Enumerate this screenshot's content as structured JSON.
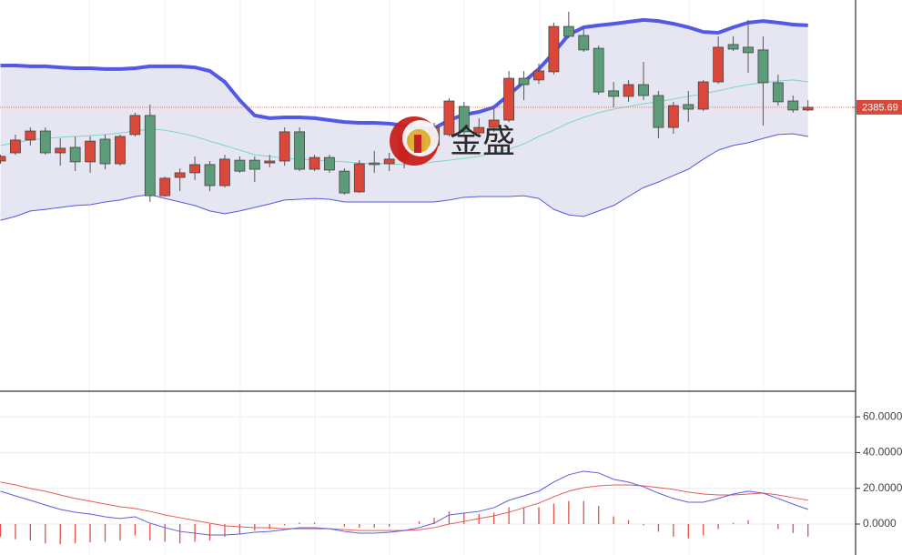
{
  "chart_data": [
    {
      "type": "candlestick",
      "categories": [
        null,
        null,
        null,
        null,
        null,
        null,
        null,
        null,
        null,
        null,
        null,
        null,
        null,
        null,
        null,
        null,
        null,
        null,
        null,
        null,
        null,
        null,
        null,
        null,
        null,
        null,
        null,
        null,
        null,
        null,
        null,
        null,
        null,
        null,
        null,
        null,
        null,
        null,
        null,
        null,
        null,
        null,
        null,
        null,
        null,
        null,
        null,
        null,
        null,
        null,
        null,
        null,
        null,
        null,
        null
      ],
      "open": [
        2366.0,
        2369.0,
        2373.7,
        2377.0,
        2369.0,
        2371.0,
        2365.7,
        2374.0,
        2365.0,
        2375.7,
        2382.7,
        2353.3,
        2360.0,
        2361.7,
        2364.7,
        2357.0,
        2366.3,
        2366.3,
        2365.3,
        2366.0,
        2376.7,
        2363.0,
        2367.3,
        2362.3,
        2354.7,
        2365.3,
        2365.0,
        2366.3,
        2375.0,
        2371.7,
        2375.7,
        2386.0,
        2376.3,
        2378.3,
        2381.0,
        2396.3,
        2395.7,
        2398.7,
        2415.3,
        2412.0,
        2407.3,
        2391.7,
        2389.7,
        2394.0,
        2390.0,
        2378.3,
        2386.7,
        2385.0,
        2395.0,
        2408.7,
        2407.7,
        2406.7,
        2394.7,
        2388.0,
        2384.7
      ],
      "close": [
        2367.7,
        2373.7,
        2377.0,
        2369.0,
        2370.7,
        2365.7,
        2373.3,
        2365.0,
        2375.0,
        2382.7,
        2353.3,
        2359.7,
        2361.7,
        2364.7,
        2357.0,
        2366.7,
        2362.3,
        2363.0,
        2366.0,
        2376.7,
        2363.0,
        2367.3,
        2362.7,
        2354.3,
        2365.0,
        2364.7,
        2366.7,
        2375.0,
        2370.0,
        2378.3,
        2388.0,
        2376.7,
        2378.3,
        2381.0,
        2396.3,
        2394.0,
        2399.0,
        2415.3,
        2411.7,
        2406.7,
        2391.3,
        2389.7,
        2394.0,
        2390.0,
        2378.3,
        2386.3,
        2385.0,
        2395.0,
        2407.7,
        2407.0,
        2405.7,
        2394.7,
        2387.7,
        2384.7,
        2385.69
      ],
      "high": [
        2368.3,
        2375.7,
        2378.3,
        2378.3,
        2374.3,
        2375.0,
        2375.0,
        2375.7,
        2375.7,
        2383.7,
        2386.7,
        2360.3,
        2363.3,
        2367.7,
        2366.0,
        2368.3,
        2367.7,
        2367.7,
        2368.3,
        2378.3,
        2378.3,
        2368.3,
        2368.3,
        2363.3,
        2366.3,
        2369.7,
        2369.0,
        2379.0,
        2378.3,
        2380.0,
        2389.0,
        2387.7,
        2381.7,
        2385.0,
        2399.0,
        2399.0,
        2401.7,
        2416.7,
        2420.7,
        2415.0,
        2408.3,
        2395.0,
        2395.7,
        2402.3,
        2391.7,
        2387.7,
        2391.7,
        2395.7,
        2411.7,
        2411.7,
        2417.7,
        2411.7,
        2397.7,
        2390.0,
        2388.3
      ],
      "low": [
        2365.0,
        2368.3,
        2371.7,
        2368.3,
        2364.3,
        2362.3,
        2361.7,
        2363.0,
        2364.3,
        2375.0,
        2351.0,
        2353.0,
        2355.0,
        2359.0,
        2355.0,
        2356.3,
        2361.7,
        2358.3,
        2363.7,
        2364.3,
        2362.3,
        2362.3,
        2361.7,
        2353.7,
        2354.3,
        2361.7,
        2362.3,
        2363.3,
        2368.3,
        2371.0,
        2375.0,
        2375.7,
        2375.0,
        2376.7,
        2380.3,
        2388.3,
        2394.3,
        2397.7,
        2411.0,
        2406.0,
        2390.3,
        2385.7,
        2387.7,
        2388.3,
        2374.3,
        2376.0,
        2380.3,
        2384.3,
        2394.3,
        2406.3,
        2398.3,
        2379.0,
        2386.3,
        2383.7,
        2384.3
      ],
      "up_color": "#d9483b",
      "down_color": "#5c9c78",
      "bands": {
        "upper": [
          2401.0,
          2401.0,
          2400.7,
          2400.7,
          2400.3,
          2400.0,
          2400.0,
          2399.7,
          2399.7,
          2400.0,
          2400.7,
          2400.7,
          2400.7,
          2400.3,
          2399.0,
          2395.0,
          2388.3,
          2382.7,
          2381.7,
          2382.0,
          2382.0,
          2381.7,
          2381.0,
          2380.3,
          2380.0,
          2380.0,
          2379.7,
          2379.0,
          2377.7,
          2378.0,
          2381.0,
          2383.0,
          2384.0,
          2385.7,
          2390.3,
          2395.0,
          2399.7,
          2405.7,
          2412.3,
          2415.0,
          2415.7,
          2416.3,
          2417.0,
          2417.7,
          2417.3,
          2416.3,
          2415.0,
          2413.3,
          2413.0,
          2415.0,
          2416.7,
          2417.3,
          2416.7,
          2416.0,
          2415.7
        ],
        "middle": [
          2371.7,
          2372.7,
          2373.7,
          2374.3,
          2374.7,
          2375.0,
          2375.3,
          2375.7,
          2376.3,
          2377.0,
          2377.7,
          2377.3,
          2376.3,
          2375.0,
          2373.3,
          2371.7,
          2370.0,
          2368.3,
          2367.7,
          2367.0,
          2366.7,
          2366.3,
          2366.0,
          2365.7,
          2365.3,
          2365.0,
          2365.0,
          2364.7,
          2365.0,
          2365.7,
          2366.3,
          2367.0,
          2367.7,
          2369.0,
          2370.3,
          2372.3,
          2375.0,
          2377.3,
          2380.0,
          2382.0,
          2383.7,
          2385.0,
          2386.0,
          2387.0,
          2387.7,
          2388.7,
          2389.7,
          2390.7,
          2391.7,
          2393.0,
          2394.0,
          2394.7,
          2395.3,
          2395.7,
          2395.0
        ],
        "lower": [
          2344.3,
          2345.7,
          2347.7,
          2348.3,
          2349.0,
          2349.7,
          2350.0,
          2351.0,
          2351.7,
          2353.0,
          2353.7,
          2352.3,
          2351.0,
          2349.7,
          2347.7,
          2346.7,
          2347.7,
          2349.0,
          2350.3,
          2351.7,
          2352.0,
          2352.3,
          2352.0,
          2351.0,
          2351.0,
          2351.0,
          2351.0,
          2351.0,
          2351.0,
          2351.0,
          2351.7,
          2352.7,
          2353.0,
          2353.0,
          2353.0,
          2353.3,
          2352.3,
          2348.3,
          2346.3,
          2345.7,
          2347.7,
          2349.7,
          2353.0,
          2356.3,
          2358.3,
          2360.7,
          2363.0,
          2366.7,
          2370.0,
          2371.7,
          2372.7,
          2374.3,
          2375.7,
          2376.0,
          2375.0
        ],
        "upper_color": "#5458e6",
        "middle_color": "#80d4c6",
        "lower_color": "#5458e6",
        "fill_color": "#e6e6f2"
      },
      "current_price": 2385.69,
      "current_price_color": "#d9483b",
      "ylim": [
        2282,
        2425
      ],
      "watermark": "金盛"
    },
    {
      "type": "macd",
      "ylim": [
        -17.3,
        73.3
      ],
      "yticks": [
        {
          "value": 60,
          "label": "60.0000"
        },
        {
          "value": 40,
          "label": "40.0000"
        },
        {
          "value": 20,
          "label": "20.0000"
        },
        {
          "value": 0,
          "label": "0.0000"
        }
      ],
      "grid": true,
      "dif": {
        "color": "#5a5ee0",
        "values": [
          18.4,
          15.8,
          13.3,
          10.7,
          8.2,
          6.6,
          5.6,
          4.1,
          3.1,
          4.1,
          0.5,
          -2.0,
          -4.1,
          -5.1,
          -6.1,
          -6.1,
          -5.6,
          -4.6,
          -4.1,
          -3.1,
          -2.0,
          -2.0,
          -2.6,
          -4.1,
          -5.1,
          -5.1,
          -4.6,
          -3.6,
          -2.0,
          0.5,
          5.1,
          6.1,
          7.1,
          9.2,
          13.3,
          15.8,
          18.4,
          23.5,
          27.6,
          29.6,
          28.6,
          25.0,
          23.5,
          20.9,
          17.3,
          14.3,
          12.2,
          12.2,
          14.3,
          16.8,
          18.4,
          17.3,
          14.3,
          11.2,
          8.2
        ]
      },
      "dea": {
        "color": "#e85a5a",
        "values": [
          23.5,
          21.9,
          19.9,
          18.4,
          16.3,
          14.3,
          12.8,
          11.2,
          9.7,
          8.7,
          7.1,
          5.1,
          3.6,
          2.0,
          0.5,
          -1.0,
          -1.5,
          -2.0,
          -2.0,
          -2.6,
          -2.6,
          -2.6,
          -2.6,
          -3.1,
          -3.6,
          -3.6,
          -3.6,
          -3.6,
          -3.1,
          -2.0,
          0.0,
          1.5,
          3.1,
          4.6,
          6.6,
          9.2,
          11.7,
          15.3,
          18.4,
          20.4,
          21.4,
          21.9,
          21.9,
          21.4,
          20.4,
          19.4,
          17.9,
          16.8,
          16.3,
          16.3,
          16.8,
          17.3,
          16.3,
          14.8,
          13.3
        ]
      },
      "histogram": {
        "color": "#e0524a",
        "values": [
          -7.1,
          -8.5,
          -9.2,
          -10.8,
          -11.3,
          -10.8,
          -10.1,
          -9.9,
          -9.2,
          -6.4,
          -9.2,
          -9.9,
          -10.8,
          -9.9,
          -9.2,
          -7.1,
          -5.7,
          -3.6,
          -2.9,
          -0.7,
          0.8,
          0.8,
          0,
          -1.4,
          -2.1,
          -2.1,
          -1.4,
          0,
          1.5,
          3.5,
          7.1,
          6.4,
          5.6,
          6.4,
          9.4,
          9.2,
          9.4,
          11.5,
          12.9,
          12.9,
          10.1,
          4.3,
          2.2,
          -0.7,
          -4.3,
          -7.1,
          -8.0,
          -6.4,
          -2.8,
          0.7,
          2.2,
          0,
          -2.8,
          -5.0,
          -7.1
        ]
      }
    }
  ]
}
